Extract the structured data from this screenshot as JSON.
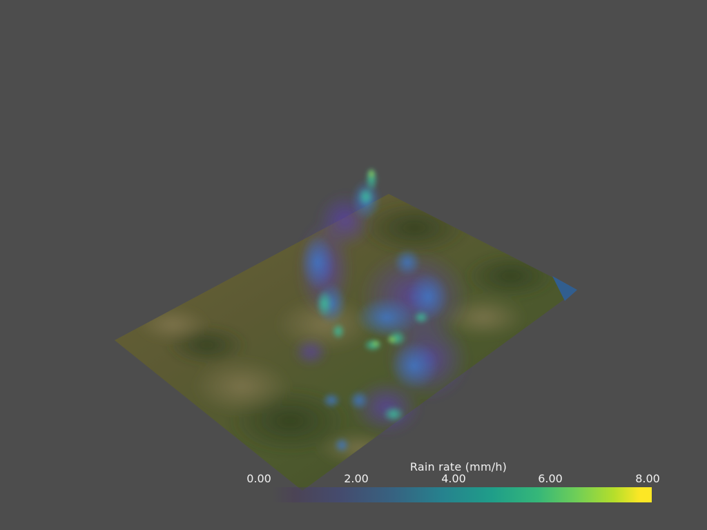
{
  "colorbar": {
    "title": "Rain rate (mm/h)",
    "ticks": [
      "0.00",
      "2.00",
      "4.00",
      "6.00",
      "8.00"
    ],
    "range": [
      0,
      8
    ],
    "colormap": "viridis"
  },
  "colors": {
    "background": "#4d4d4d",
    "terrain": "#5a5a32",
    "water": "#2f5f9a"
  }
}
